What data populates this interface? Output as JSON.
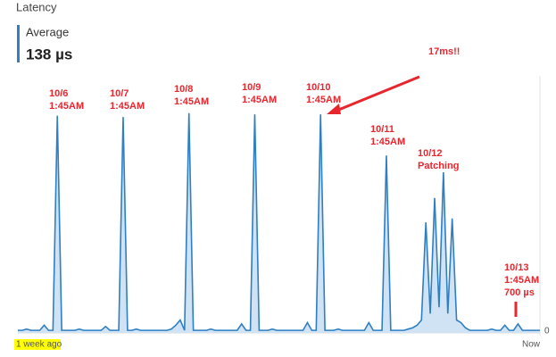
{
  "chart_data": {
    "type": "line",
    "title": "Latency",
    "metric_label": "Average",
    "metric_value": "138 µs",
    "x_start_label": "1 week ago",
    "x_end_label": "Now",
    "color": "#2f7fc1",
    "area_color": "#cfe3f4",
    "ylim": [
      0,
      20
    ],
    "yticks": [
      0
    ],
    "values": [
      0.2,
      0.2,
      0.3,
      0.2,
      0.2,
      0.2,
      0.6,
      0.2,
      0.2,
      16.9,
      0.2,
      0.2,
      0.2,
      0.2,
      0.3,
      0.2,
      0.2,
      0.2,
      0.2,
      0.2,
      0.5,
      0.2,
      0.2,
      0.2,
      16.8,
      0.2,
      0.2,
      0.3,
      0.2,
      0.2,
      0.2,
      0.2,
      0.2,
      0.2,
      0.2,
      0.3,
      0.6,
      1.0,
      0.2,
      17.1,
      0.2,
      0.2,
      0.2,
      0.2,
      0.3,
      0.2,
      0.2,
      0.2,
      0.2,
      0.2,
      0.2,
      0.7,
      0.2,
      0.2,
      17.0,
      0.2,
      0.2,
      0.2,
      0.3,
      0.2,
      0.2,
      0.2,
      0.2,
      0.2,
      0.2,
      0.2,
      0.8,
      0.2,
      0.2,
      17.0,
      0.2,
      0.2,
      0.2,
      0.3,
      0.2,
      0.2,
      0.2,
      0.2,
      0.2,
      0.2,
      0.8,
      0.2,
      0.2,
      0.2,
      13.8,
      0.2,
      0.2,
      0.2,
      0.2,
      0.3,
      0.4,
      0.6,
      1.0,
      8.6,
      1.5,
      10.5,
      2.0,
      12.5,
      1.5,
      8.9,
      1.0,
      0.8,
      0.4,
      0.2,
      0.2,
      0.2,
      0.2,
      0.2,
      0.3,
      0.2,
      0.2,
      0.6,
      0.2,
      0.2,
      0.7,
      0.2,
      0.2,
      0.2,
      0.2,
      0.2
    ],
    "annotations": [
      {
        "lines": [
          "10/6",
          "1:45AM"
        ]
      },
      {
        "lines": [
          "10/7",
          "1:45AM"
        ]
      },
      {
        "lines": [
          "10/8",
          "1:45AM"
        ]
      },
      {
        "lines": [
          "10/9",
          "1:45AM"
        ]
      },
      {
        "lines": [
          "10/10",
          "1:45AM"
        ]
      },
      {
        "lines": [
          "10/11",
          "1:45AM"
        ]
      },
      {
        "lines": [
          "10/12",
          "Patching"
        ]
      },
      {
        "lines": [
          "10/13",
          "1:45AM",
          "700 µs"
        ]
      },
      {
        "lines": [
          "17ms!!"
        ]
      }
    ]
  }
}
